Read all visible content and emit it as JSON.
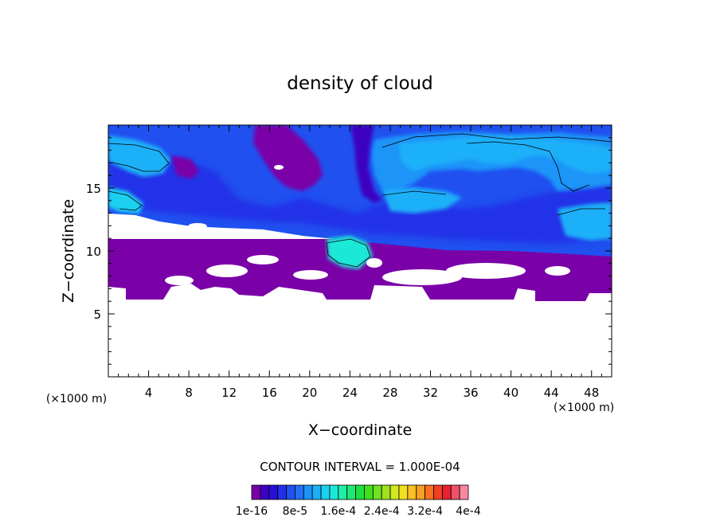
{
  "chart_data": {
    "type": "heatmap",
    "title": "density of cloud",
    "xlabel": "X−coordinate",
    "ylabel": "Z−coordinate",
    "x_unit_label": "(×1000 m)",
    "y_unit_label": "(×1000 m)",
    "xlim": [
      0,
      50
    ],
    "ylim": [
      0,
      20
    ],
    "x_ticks": [
      4,
      8,
      12,
      16,
      20,
      24,
      28,
      32,
      36,
      40,
      44,
      48
    ],
    "y_ticks": [
      5,
      10,
      15
    ],
    "contour_interval_text": "CONTOUR INTERVAL = 1.000E-04",
    "colorbar_labels": [
      "1e-16",
      "8e-5",
      "1.6e-4",
      "2.4e-4",
      "3.2e-4",
      "4e-4"
    ],
    "colorbar_colors": [
      "#7a00a8",
      "#3c00c0",
      "#2810d8",
      "#2030e8",
      "#2050f0",
      "#2070f8",
      "#1c94f8",
      "#1cb0f8",
      "#1cd0f0",
      "#1ce8d8",
      "#1cf0a8",
      "#20e878",
      "#20e040",
      "#40e020",
      "#70e020",
      "#a0e020",
      "#d0e820",
      "#f0e020",
      "#f8c020",
      "#f8a020",
      "#f87020",
      "#f04020",
      "#e82030",
      "#f05068",
      "#f888a0"
    ],
    "cloud_layers": [
      {
        "name": "lower cloud band",
        "x": [
          0,
          50
        ],
        "z": [
          6.4,
          10.5
        ],
        "level": "purple-blue"
      },
      {
        "name": "upper cloud band",
        "x": [
          0,
          50
        ],
        "z": [
          10.5,
          19.5
        ],
        "level": "blue-cyan"
      }
    ],
    "grid": false
  }
}
